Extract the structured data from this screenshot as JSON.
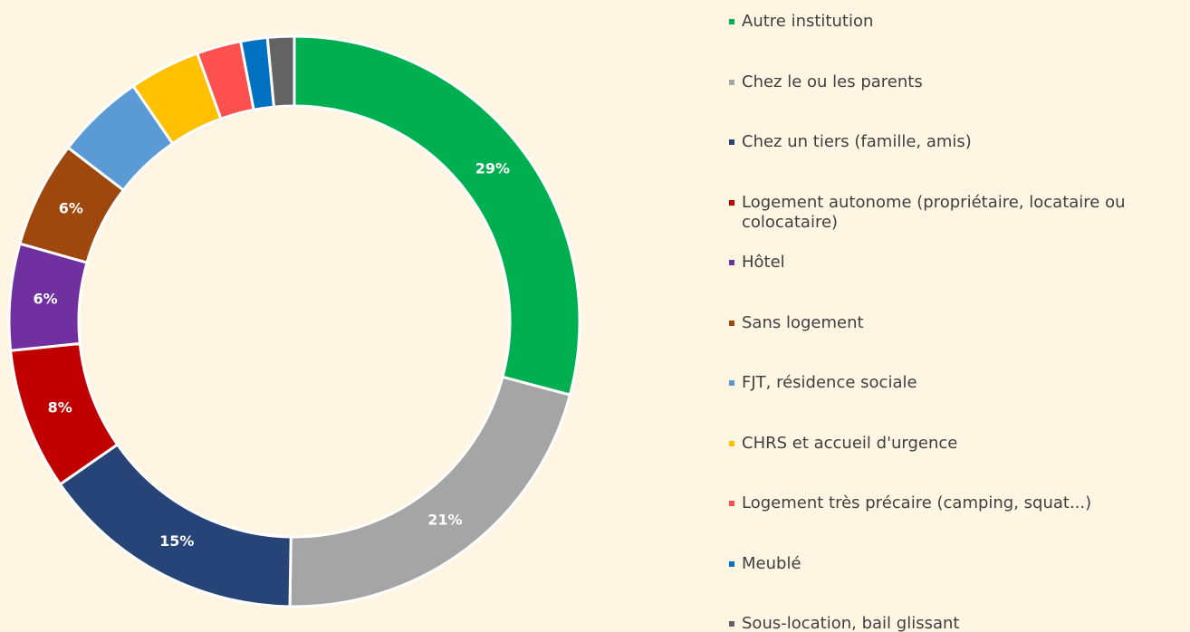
{
  "chart_data": {
    "type": "donut",
    "categories": [
      "Autre institution",
      "Chez le ou les parents",
      "Chez un tiers (famille, amis)",
      "Logement autonome (propriétaire, locataire ou colocataire)",
      "Hôtel",
      "Sans logement",
      "FJT, résidence sociale",
      "CHRS et accueil d'urgence",
      "Logement très précaire (camping, squat...)",
      "Meublé",
      "Sous-location, bail glissant"
    ],
    "values": [
      29,
      21,
      15,
      8,
      6,
      6,
      5,
      4,
      2.5,
      1.5,
      1.5
    ],
    "value_labels": [
      "29%",
      "21%",
      "15%",
      "8%",
      "6%",
      "6%",
      null,
      null,
      null,
      null,
      null
    ],
    "colors": [
      "#00b050",
      "#a5a5a5",
      "#264478",
      "#c00000",
      "#7030a0",
      "#9e480e",
      "#5b9bd5",
      "#ffc000",
      "#ff5050",
      "#0070c0",
      "#636363"
    ],
    "legend": "right"
  }
}
